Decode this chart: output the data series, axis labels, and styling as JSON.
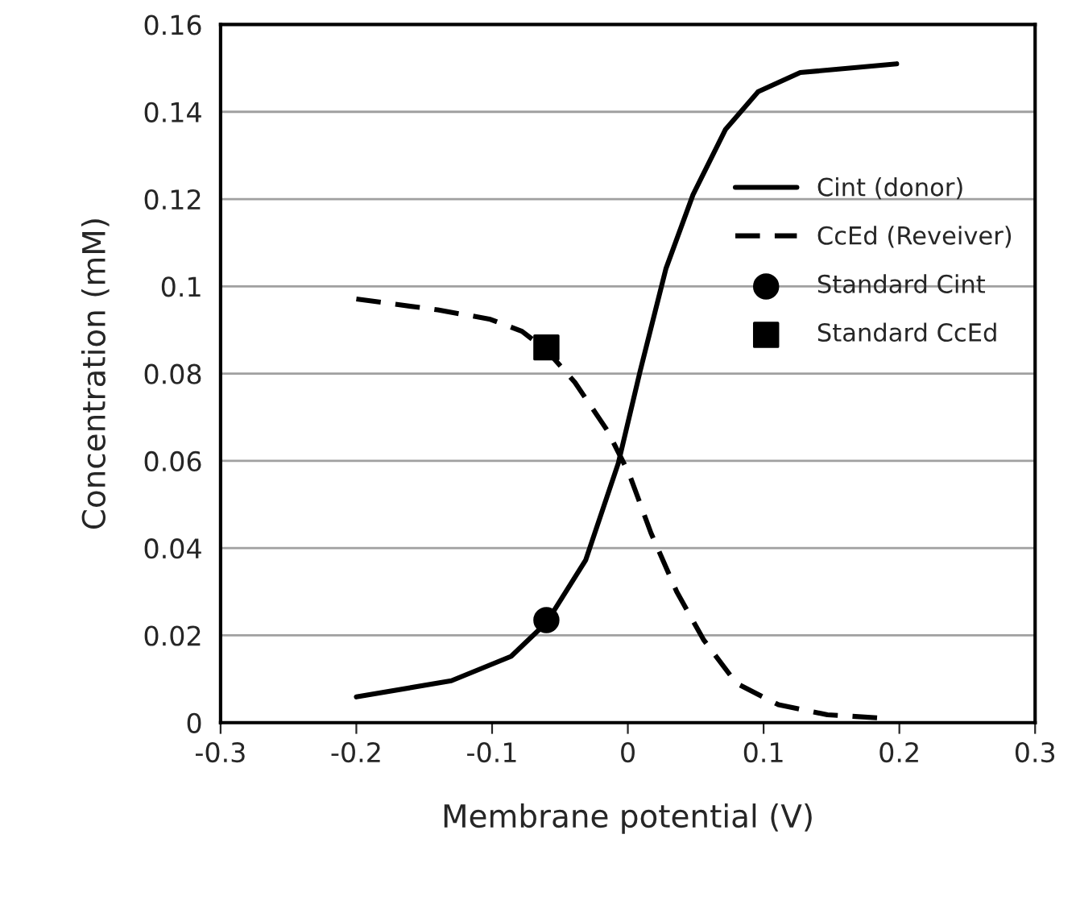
{
  "chart_data": {
    "type": "line",
    "xlabel": "Membrane potential (V)",
    "ylabel": "Concentration (mM)",
    "xlim": [
      -0.3,
      0.3
    ],
    "xticks": [
      -0.3,
      -0.2,
      -0.1,
      0,
      0.1,
      0.2,
      0.3
    ],
    "ylim": [
      0,
      0.16
    ],
    "yticks": [
      0,
      0.02,
      0.04,
      0.06,
      0.08,
      0.1,
      0.12,
      0.14,
      0.16
    ],
    "grid": "y",
    "legend": "right",
    "series": [
      {
        "name": "Cint (donor)",
        "line_style": "solid",
        "marker": "none",
        "color": "#000000",
        "x": [
          -0.2,
          -0.13,
          -0.086,
          -0.06,
          -0.031,
          -0.007,
          0.009,
          0.028,
          0.048,
          0.072,
          0.096,
          0.127,
          0.198
        ],
        "values": [
          0.0059,
          0.0096,
          0.0152,
          0.0229,
          0.0373,
          0.0595,
          0.0805,
          0.104,
          0.121,
          0.136,
          0.1446,
          0.149,
          0.151
        ]
      },
      {
        "name": "CcEd (Reveiver)",
        "line_style": "dashed",
        "marker": "none",
        "color": "#000000",
        "x": [
          -0.2,
          -0.14,
          -0.102,
          -0.078,
          -0.06,
          -0.039,
          -0.015,
          0.001,
          0.017,
          0.036,
          0.056,
          0.08,
          0.111,
          0.147,
          0.19
        ],
        "values": [
          0.0971,
          0.0946,
          0.0925,
          0.0897,
          0.0854,
          0.078,
          0.0669,
          0.057,
          0.0435,
          0.03,
          0.0189,
          0.009,
          0.0041,
          0.0018,
          0.001
        ]
      },
      {
        "name": "Standard Cint",
        "type": "scatter",
        "marker": "circle",
        "color": "#000000",
        "x": [
          -0.06
        ],
        "values": [
          0.0235
        ]
      },
      {
        "name": "Standard CcEd",
        "type": "scatter",
        "marker": "square",
        "color": "#000000",
        "x": [
          -0.06
        ],
        "values": [
          0.086
        ]
      }
    ]
  }
}
